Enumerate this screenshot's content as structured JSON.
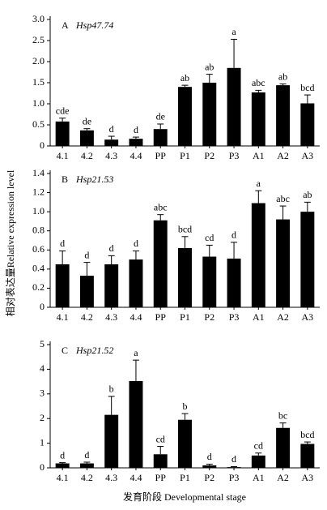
{
  "ylabel": "相对表达量Relative expression level",
  "xlabel": "发育阶段 Developmental stage",
  "chart_data": [
    {
      "type": "bar",
      "panel": "A",
      "title": "Hsp47.74",
      "color": "#000000",
      "categories": [
        "4.1",
        "4.2",
        "4.3",
        "4.4",
        "PP",
        "P1",
        "P2",
        "P3",
        "A1",
        "A2",
        "A3"
      ],
      "values": [
        0.58,
        0.37,
        0.15,
        0.17,
        0.4,
        1.4,
        1.5,
        1.85,
        1.27,
        1.44,
        1.01
      ],
      "errors": [
        0.08,
        0.04,
        0.08,
        0.04,
        0.12,
        0.04,
        0.2,
        0.68,
        0.05,
        0.03,
        0.2
      ],
      "annotations": [
        "cde",
        "de",
        "d",
        "d",
        "de",
        "ab",
        "ab",
        "a",
        "abc",
        "ab",
        "bcd"
      ],
      "ylim": [
        0,
        3
      ],
      "yticks": [
        0,
        0.5,
        {
          "value": 1,
          "label": "1.0"
        },
        1.5,
        {
          "value": 2,
          "label": "2.0"
        },
        2.5,
        {
          "value": 3,
          "label": "3.0"
        }
      ]
    },
    {
      "type": "bar",
      "panel": "B",
      "title": "Hsp21.53",
      "color": "#000000",
      "categories": [
        "4.1",
        "4.2",
        "4.3",
        "4.4",
        "PP",
        "P1",
        "P2",
        "P3",
        "A1",
        "A2",
        "A3"
      ],
      "values": [
        0.45,
        0.33,
        0.45,
        0.5,
        0.91,
        0.62,
        0.53,
        0.51,
        1.09,
        0.92,
        1.0
      ],
      "errors": [
        0.14,
        0.14,
        0.09,
        0.09,
        0.06,
        0.12,
        0.12,
        0.17,
        0.13,
        0.14,
        0.1
      ],
      "annotations": [
        "d",
        "d",
        "d",
        "d",
        "abc",
        "bcd",
        "cd",
        "d",
        "a",
        "abc",
        "ab"
      ],
      "ylim": [
        0,
        1.4
      ],
      "yticks": [
        0,
        0.2,
        0.4,
        0.6,
        0.8,
        {
          "value": 1,
          "label": "1.0"
        },
        1.2,
        1.4
      ]
    },
    {
      "type": "bar",
      "panel": "C",
      "title": "Hsp21.52",
      "color": "#000000",
      "categories": [
        "4.1",
        "4.2",
        "4.3",
        "4.4",
        "PP",
        "P1",
        "P2",
        "P3",
        "A1",
        "A2",
        "A3"
      ],
      "values": [
        0.18,
        0.18,
        2.15,
        3.52,
        0.55,
        1.95,
        0.1,
        0.03,
        0.5,
        1.62,
        0.97
      ],
      "errors": [
        0.03,
        0.05,
        0.75,
        0.85,
        0.32,
        0.25,
        0.05,
        0.02,
        0.1,
        0.2,
        0.08
      ],
      "annotations": [
        "d",
        "d",
        "b",
        "a",
        "cd",
        "b",
        "d",
        "d",
        "cd",
        "bc",
        "bcd"
      ],
      "ylim": [
        0,
        5
      ],
      "yticks": [
        0,
        1,
        2,
        3,
        4,
        5
      ]
    }
  ]
}
